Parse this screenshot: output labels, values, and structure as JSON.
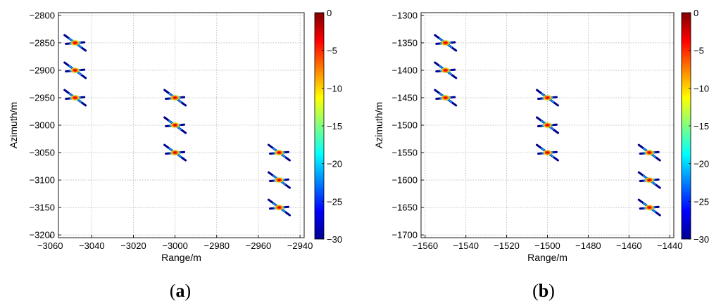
{
  "colormap": [
    "#00008f",
    "#0000ff",
    "#0080ff",
    "#00ffff",
    "#80ff80",
    "#ffff00",
    "#ff8000",
    "#ff0000",
    "#800000"
  ],
  "panels": [
    {
      "label": "a",
      "chart_data": {
        "type": "scatter",
        "title": "",
        "xlabel": "Range/m",
        "ylabel": "Azimuth/m",
        "xlim": [
          -3056,
          -2938
        ],
        "ylim": [
          -3205,
          -2795
        ],
        "xticks": [
          -3060,
          -3040,
          -3020,
          -3000,
          -2980,
          -2960,
          -2940
        ],
        "yticks": [
          -2800,
          -2850,
          -2900,
          -2950,
          -3000,
          -3050,
          -3100,
          -3150,
          -3200
        ],
        "grid": true,
        "colorbar": {
          "ticks": [
            0,
            -5,
            -10,
            -15,
            -20,
            -25,
            -30
          ],
          "range": [
            -30,
            0
          ]
        },
        "points": [
          {
            "x": -3048,
            "y": -2850
          },
          {
            "x": -3048,
            "y": -2900
          },
          {
            "x": -3048,
            "y": -2950
          },
          {
            "x": -3000,
            "y": -2950
          },
          {
            "x": -3000,
            "y": -3000
          },
          {
            "x": -3000,
            "y": -3050
          },
          {
            "x": -2950,
            "y": -3050
          },
          {
            "x": -2950,
            "y": -3100
          },
          {
            "x": -2950,
            "y": -3150
          }
        ]
      }
    },
    {
      "label": "b",
      "chart_data": {
        "type": "scatter",
        "title": "",
        "xlabel": "Range/m",
        "ylabel": "Azimuth/m",
        "xlim": [
          -1562,
          -1438
        ],
        "ylim": [
          -1705,
          -1295
        ],
        "xticks": [
          -1560,
          -1540,
          -1520,
          -1500,
          -1480,
          -1460,
          -1440
        ],
        "yticks": [
          -1300,
          -1350,
          -1400,
          -1450,
          -1500,
          -1550,
          -1600,
          -1650,
          -1700
        ],
        "grid": true,
        "colorbar": {
          "ticks": [
            0,
            -5,
            -10,
            -15,
            -20,
            -25,
            -30
          ],
          "range": [
            -30,
            0
          ]
        },
        "points": [
          {
            "x": -1550,
            "y": -1350
          },
          {
            "x": -1550,
            "y": -1400
          },
          {
            "x": -1550,
            "y": -1450
          },
          {
            "x": -1500,
            "y": -1450
          },
          {
            "x": -1500,
            "y": -1500
          },
          {
            "x": -1500,
            "y": -1550
          },
          {
            "x": -1450,
            "y": -1550
          },
          {
            "x": -1450,
            "y": -1600
          },
          {
            "x": -1450,
            "y": -1650
          }
        ]
      }
    }
  ]
}
